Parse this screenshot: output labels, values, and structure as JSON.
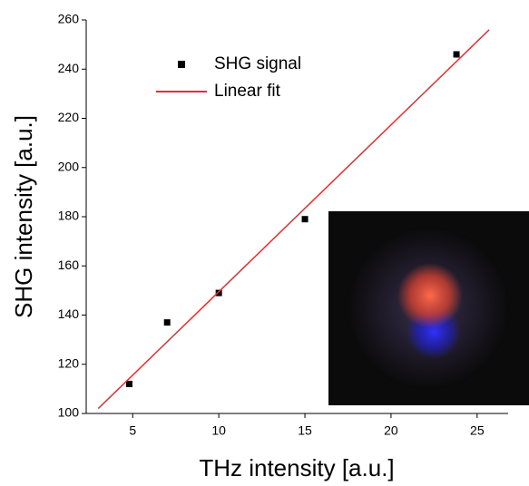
{
  "chart_data": {
    "type": "scatter",
    "xlabel": "THz intensity [a.u.]",
    "ylabel": "SHG intensity [a.u.]",
    "xlim": [
      2.3,
      26.8
    ],
    "xticks": [
      5,
      10,
      15,
      20,
      25
    ],
    "ylim": [
      100,
      260
    ],
    "yticks": [
      100,
      120,
      140,
      160,
      180,
      200,
      220,
      240,
      260
    ],
    "series": [
      {
        "name": "SHG signal",
        "type": "scatter",
        "color": "#000000",
        "x": [
          4.8,
          7,
          10,
          15,
          23.8
        ],
        "values": [
          112,
          137,
          149,
          179,
          246
        ]
      },
      {
        "name": "Linear fit",
        "type": "line",
        "color": "#e03030",
        "x": [
          3,
          25.7
        ],
        "values": [
          102,
          256
        ]
      }
    ]
  }
}
